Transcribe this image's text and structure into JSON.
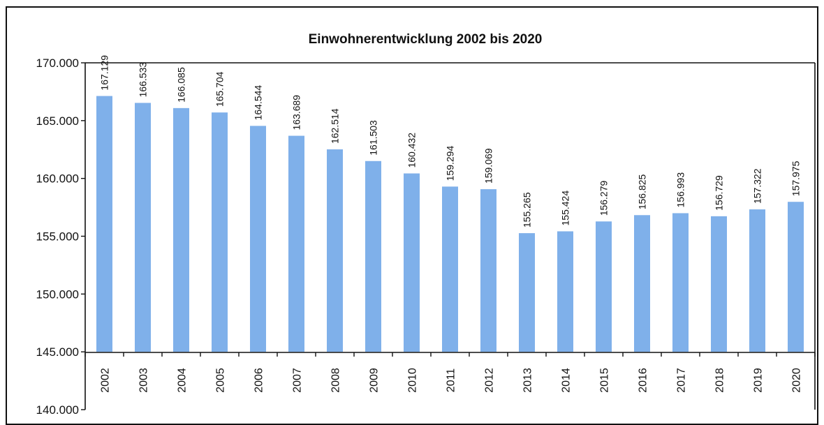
{
  "chart_data": {
    "type": "bar",
    "title": "Einwohnerentwicklung 2002 bis 2020",
    "xlabel": "",
    "ylabel": "",
    "categories": [
      "2002",
      "2003",
      "2004",
      "2005",
      "2006",
      "2007",
      "2008",
      "2009",
      "2010",
      "2011",
      "2012",
      "2013",
      "2014",
      "2015",
      "2016",
      "2017",
      "2018",
      "2019",
      "2020"
    ],
    "values": [
      167129,
      166533,
      166085,
      165704,
      164544,
      163689,
      162514,
      161503,
      160432,
      159294,
      159069,
      155265,
      155424,
      156279,
      156825,
      156993,
      156729,
      157322,
      157975
    ],
    "data_labels": [
      "167.129",
      "166.533",
      "166.085",
      "165.704",
      "164.544",
      "163.689",
      "162.514",
      "161.503",
      "160.432",
      "159.294",
      "159.069",
      "155.265",
      "155.424",
      "156.279",
      "156.825",
      "156.993",
      "156.729",
      "157.322",
      "157.975"
    ],
    "y_ticks": [
      170000,
      165000,
      160000,
      155000,
      150000,
      145000,
      140000
    ],
    "y_tick_labels": [
      "170.000",
      "165.000",
      "160.000",
      "155.000",
      "150.000",
      "145.000",
      "140.000"
    ],
    "ylim": [
      140000,
      170000
    ],
    "bar_baseline": 145000,
    "grid": false,
    "legend": "none",
    "colors": {
      "bar": "#7fb0ea",
      "axis": "#111111",
      "frame": "#111111",
      "text": "#111111"
    }
  }
}
